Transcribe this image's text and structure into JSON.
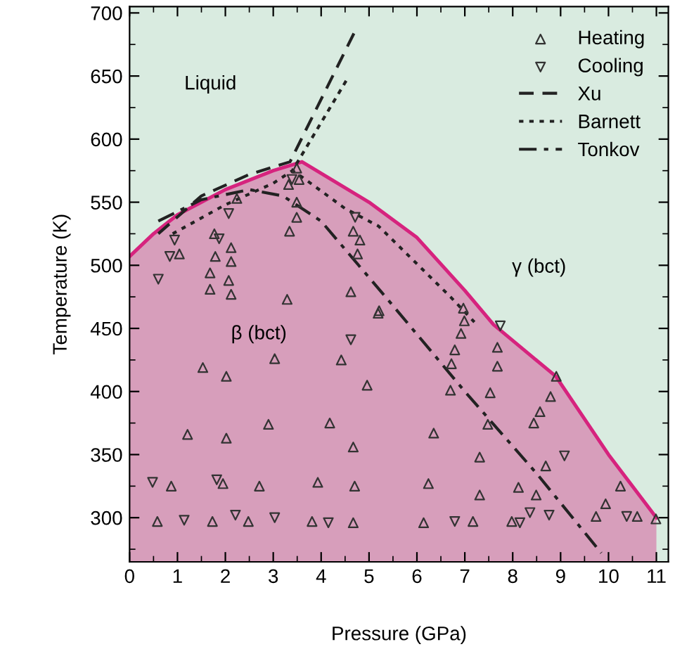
{
  "chart_data": {
    "type": "scatter",
    "xlabel": "Pressure (GPa)",
    "ylabel": "Temperature (K)",
    "xlim": [
      0,
      11.25
    ],
    "ylim": [
      265,
      705
    ],
    "xticks": [
      0,
      1,
      2,
      3,
      4,
      5,
      6,
      7,
      8,
      9,
      10,
      11
    ],
    "yticks": [
      300,
      350,
      400,
      450,
      500,
      550,
      600,
      650,
      700
    ],
    "grid": false,
    "legend": "top right",
    "annotations": [
      "Liquid",
      "β (bct)",
      "γ (bct)"
    ],
    "series": [
      {
        "type": "area",
        "color": "#d6237e",
        "x": [
          0,
          0.5,
          1,
          2,
          3,
          3.6,
          5,
          6,
          7,
          7.6,
          8.9,
          10,
          11
        ],
        "values": [
          507,
          525,
          540,
          560,
          575,
          582,
          550,
          522,
          480,
          453,
          412,
          350,
          300
        ]
      },
      {
        "name": "Heating",
        "marker": "triangle",
        "color": "#333333",
        "x": [
          0.58,
          0.87,
          1.53,
          2.02,
          3.03,
          1.21,
          2.02,
          2.9,
          1.73,
          1.95,
          2.48,
          2.71,
          3.81,
          3.93,
          4.67,
          4.7,
          4.18,
          4.67,
          4.42,
          4.96,
          5.19,
          6.97,
          6.99,
          6.92,
          6.79,
          6.72,
          6.7,
          7.68,
          7.68,
          7.53,
          8.91,
          8.79,
          8.57,
          8.44,
          7.48,
          6.35,
          7.31,
          8.69,
          6.24,
          7.31,
          8.12,
          8.49,
          10.25,
          9.94,
          9.74,
          10.6,
          10.99,
          6.14,
          7.17,
          7.98,
          1.04,
          1.77,
          1.79,
          2.12,
          1.68,
          2.12,
          1.68,
          2.07,
          2.12,
          2.24,
          3.54,
          3.32,
          3.49,
          3.34,
          3.29,
          3.49,
          4.67,
          4.81,
          4.76,
          4.62,
          5.21,
          3.49
        ],
        "values": [
          297,
          325,
          419,
          412,
          426,
          366,
          363,
          374,
          297,
          327,
          297,
          325,
          297,
          328,
          296,
          325,
          375,
          356,
          425,
          405,
          462,
          466,
          456,
          446,
          433,
          422,
          401,
          435,
          420,
          399,
          412,
          396,
          384,
          375,
          374,
          367,
          348,
          341,
          327,
          318,
          324,
          318,
          325,
          311,
          301,
          301,
          299,
          296,
          297,
          297,
          509,
          525,
          507,
          514,
          494,
          503,
          481,
          488,
          477,
          553,
          568,
          564,
          538,
          527,
          473,
          550,
          527,
          520,
          509,
          479,
          464,
          577
        ]
      },
      {
        "name": "Cooling",
        "marker": "triangle_down",
        "color": "#333333",
        "x": [
          0.48,
          2.21,
          1.14,
          3.03,
          4.15,
          4.62,
          1.82,
          7.74,
          9.08,
          6.79,
          8.15,
          8.36,
          8.76,
          10.38,
          0.6,
          0.94,
          0.84,
          1.87,
          2.07,
          3.39,
          4.71
        ],
        "values": [
          328,
          302,
          298,
          300,
          296,
          441,
          330,
          452,
          349,
          297,
          296,
          304,
          302,
          301,
          489,
          520,
          507,
          521,
          541,
          568,
          538
        ]
      },
      {
        "name": "Xu",
        "type": "line",
        "line_style": "dashed",
        "color": "#222222",
        "x": [
          0.6,
          1.5,
          2.5,
          3.35,
          4.7
        ],
        "values": [
          525,
          555,
          572,
          582,
          685
        ]
      },
      {
        "name": "Barnett",
        "type": "line",
        "line_style": "dotted",
        "color": "#222222",
        "x": [
          0.9,
          2,
          3,
          3.4,
          4.55,
          3.4,
          3.6,
          4.5,
          5.2,
          6.7,
          7.2
        ],
        "values": [
          525,
          548,
          565,
          575,
          648,
          575,
          570,
          545,
          531,
          475,
          455
        ]
      },
      {
        "name": "Tonkov",
        "type": "line",
        "line_style": "dashdot",
        "color": "#222222",
        "x": [
          0.6,
          1.5,
          2.5,
          3.2,
          4,
          5.5,
          7,
          8.5,
          9.85
        ],
        "values": [
          535,
          552,
          560,
          555,
          535,
          468,
          400,
          335,
          272
        ]
      }
    ]
  }
}
